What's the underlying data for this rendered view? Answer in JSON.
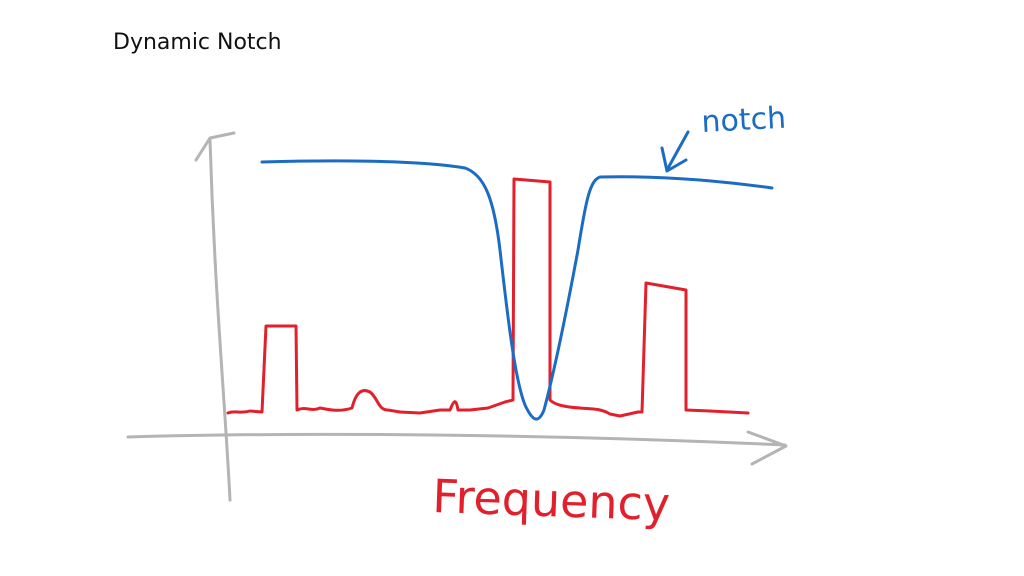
{
  "title": "Dynamic Notch",
  "notch_label": "notch",
  "x_axis_label": "Frequency",
  "colors": {
    "axes": "#b4b4b4",
    "spectrum": "#e2202c",
    "filter": "#1b6cc2",
    "title": "#111111"
  }
}
